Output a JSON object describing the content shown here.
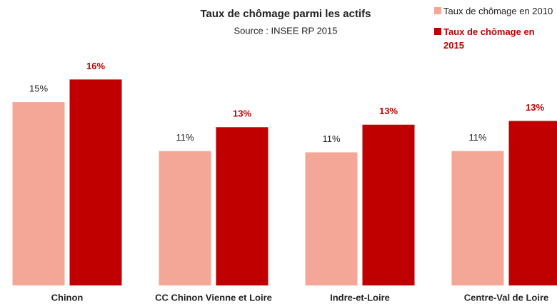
{
  "chart_data": {
    "type": "bar",
    "title": "Taux de chômage parmi les actifs",
    "subtitle": "Source : INSEE RP 2015",
    "categories": [
      "Chinon",
      "CC Chinon Vienne et Loire",
      "Indre-et-Loire",
      "Centre-Val de Loire"
    ],
    "series": [
      {
        "name": "Taux de chômage en 2010",
        "color": "#f4a797",
        "values": [
          14.6,
          10.7,
          10.6,
          10.7
        ],
        "value_labels": [
          "15%",
          "11%",
          "11%",
          "11%"
        ]
      },
      {
        "name": "Taux de chômage en 2015",
        "color": "#c00000",
        "values": [
          16.4,
          12.6,
          12.8,
          13.1
        ],
        "value_labels": [
          "16%",
          "13%",
          "13%",
          "13%"
        ]
      }
    ],
    "ylim": [
      0,
      22.7
    ],
    "legend": "top-right"
  }
}
